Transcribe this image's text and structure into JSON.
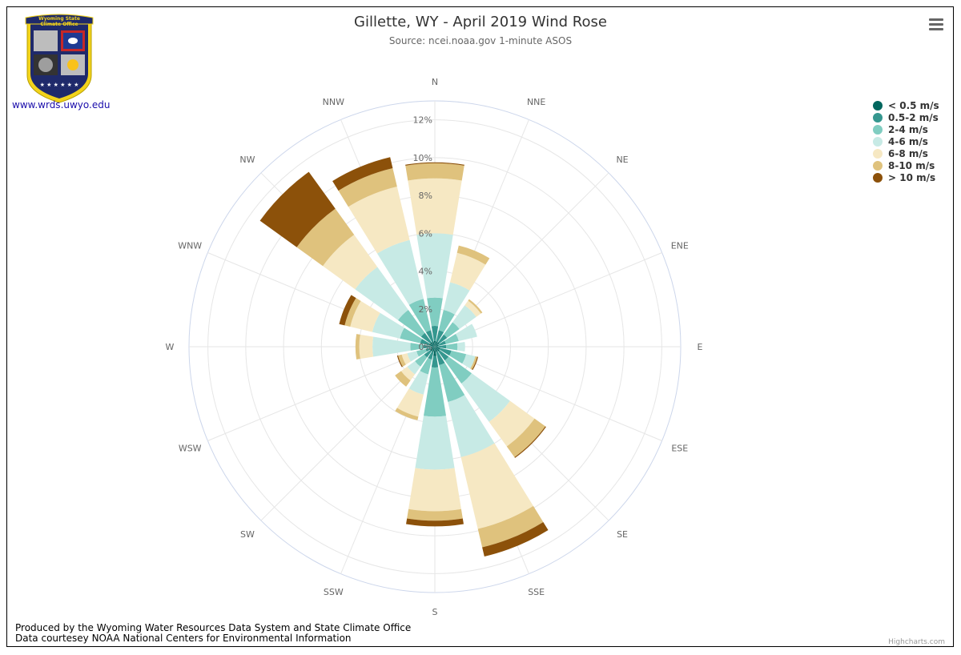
{
  "title": "Gillette, WY - April 2019 Wind Rose",
  "subtitle": "Source: ncei.noaa.gov 1-minute ASOS",
  "logo": {
    "text_line1": "Wyoming State",
    "text_line2": "Climate Office"
  },
  "url_text": "www.wrds.uwyo.edu",
  "footer": {
    "line1": "Produced by the Wyoming Water Resources Data System and State Climate Office",
    "line2": "Data courtesey NOAA National Centers for Environmental Information"
  },
  "credits": "Highcharts.com",
  "icons": {
    "menu": "hamburger-menu-icon"
  },
  "chart_data": {
    "type": "windrose",
    "directions": [
      "N",
      "NNE",
      "NE",
      "ENE",
      "E",
      "ESE",
      "SE",
      "SSE",
      "S",
      "SSW",
      "SW",
      "WSW",
      "W",
      "WNW",
      "NW",
      "NNW"
    ],
    "radial_ticks": [
      "0%",
      "2%",
      "4%",
      "6%",
      "8%",
      "10%",
      "12%"
    ],
    "radial_max": 13,
    "legend_placement": "top-right",
    "series": [
      {
        "name": "< 0.5 m/s",
        "color": "#01665e",
        "values": [
          0.3,
          0.3,
          0.3,
          0.2,
          0.2,
          0.3,
          0.3,
          0.3,
          0.5,
          0.3,
          0.3,
          0.2,
          0.2,
          0.3,
          0.3,
          0.3
        ]
      },
      {
        "name": "0.5-2 m/s",
        "color": "#35978f",
        "values": [
          0.8,
          0.6,
          0.5,
          0.4,
          0.4,
          0.6,
          0.6,
          0.7,
          0.6,
          0.4,
          0.4,
          0.3,
          0.4,
          0.5,
          0.6,
          0.6
        ]
      },
      {
        "name": "2-4 m/s",
        "color": "#80cdc1",
        "values": [
          1.5,
          1.1,
          0.8,
          0.7,
          0.6,
          0.8,
          1.5,
          2.0,
          2.6,
          0.8,
          0.6,
          0.5,
          0.7,
          1.1,
          1.5,
          1.7
        ]
      },
      {
        "name": "4-6 m/s",
        "color": "#c7eae5",
        "values": [
          3.4,
          1.5,
          1.1,
          1.0,
          0.4,
          0.5,
          2.5,
          3.0,
          2.8,
          1.1,
          0.5,
          0.5,
          2.0,
          1.5,
          2.8,
          3.2
        ]
      },
      {
        "name": "6-8 m/s",
        "color": "#f6e8c3",
        "values": [
          2.9,
          1.6,
          0.3,
          0,
          0,
          0,
          1.6,
          3.9,
          2.2,
          1.2,
          0.4,
          0.3,
          0.7,
          1.2,
          2.1,
          2.9
        ]
      },
      {
        "name": "8-10 m/s",
        "color": "#dfc27d",
        "values": [
          0.8,
          0.4,
          0.1,
          0,
          0,
          0.1,
          0.7,
          1.0,
          0.5,
          0.2,
          0.4,
          0.2,
          0.2,
          0.3,
          1.7,
          1.0
        ]
      },
      {
        "name": "> 10 m/s",
        "color": "#8c510a",
        "values": [
          0.05,
          0,
          0,
          0,
          0,
          0.05,
          0.05,
          0.5,
          0.3,
          0,
          0,
          0.05,
          0,
          0.3,
          2.4,
          0.6
        ]
      }
    ]
  }
}
